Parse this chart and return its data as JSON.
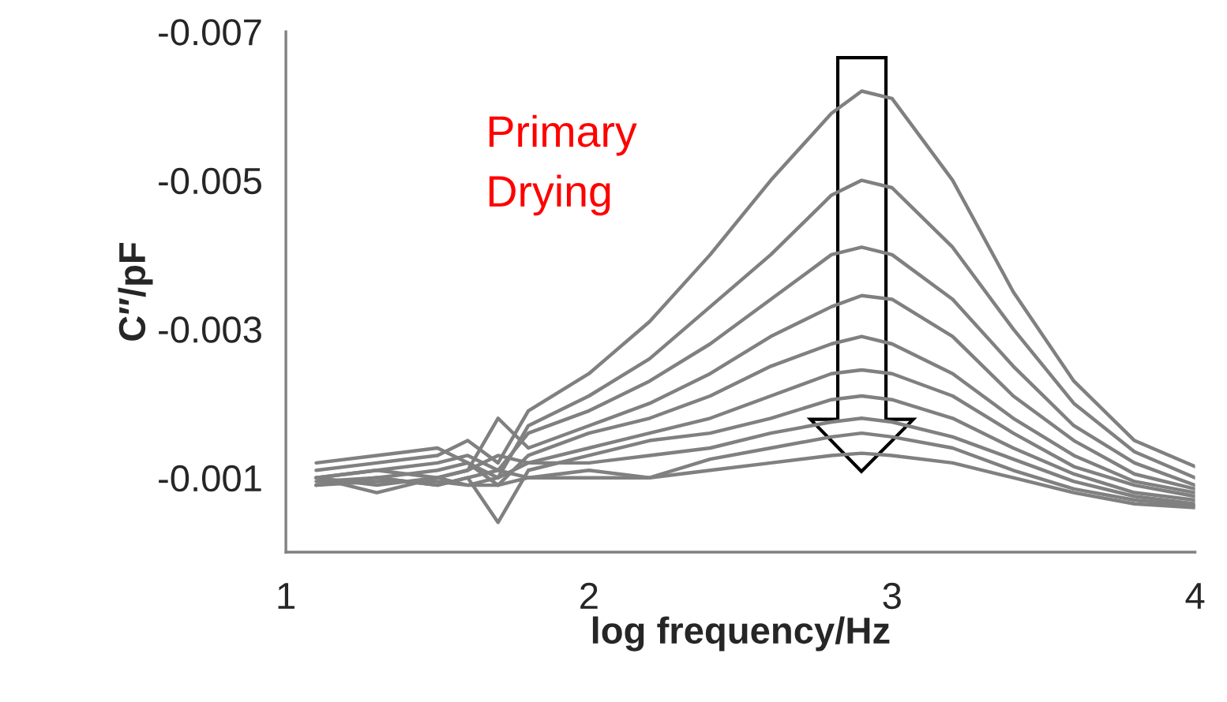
{
  "chart_data": {
    "type": "line",
    "xlabel": "log frequency/Hz",
    "ylabel": "C″/pF",
    "x": [
      1.1,
      1.3,
      1.5,
      1.6,
      1.7,
      1.8,
      2.0,
      2.2,
      2.4,
      2.6,
      2.8,
      2.9,
      3.0,
      3.2,
      3.4,
      3.6,
      3.8,
      4.0
    ],
    "series": [
      {
        "color": "#808080",
        "values": [
          -0.0011,
          -0.0012,
          -0.0013,
          -0.0015,
          -0.0012,
          -0.0019,
          -0.0024,
          -0.0031,
          -0.004,
          -0.005,
          -0.0059,
          -0.0062,
          -0.0061,
          -0.005,
          -0.0035,
          -0.0023,
          -0.0015,
          -0.00115
        ]
      },
      {
        "color": "#808080",
        "values": [
          -0.0012,
          -0.0013,
          -0.0014,
          -0.0012,
          -0.001,
          -0.0017,
          -0.0021,
          -0.0026,
          -0.0033,
          -0.004,
          -0.0048,
          -0.005,
          -0.0049,
          -0.0041,
          -0.003,
          -0.002,
          -0.00135,
          -0.001
        ]
      },
      {
        "color": "#808080",
        "values": [
          -0.001,
          -0.0011,
          -0.0012,
          -0.0013,
          -0.0011,
          -0.0016,
          -0.0019,
          -0.0023,
          -0.0028,
          -0.0034,
          -0.004,
          -0.0041,
          -0.004,
          -0.0034,
          -0.0025,
          -0.0017,
          -0.0012,
          -0.0009
        ]
      },
      {
        "color": "#808080",
        "values": [
          -0.001,
          -0.0011,
          -0.001,
          -0.0011,
          -0.0018,
          -0.0014,
          -0.0017,
          -0.002,
          -0.0024,
          -0.0029,
          -0.0033,
          -0.00345,
          -0.0034,
          -0.0029,
          -0.0021,
          -0.0015,
          -0.00105,
          -0.00085
        ]
      },
      {
        "color": "#808080",
        "values": [
          -0.0009,
          -0.001,
          -0.0011,
          -0.0012,
          -0.0009,
          -0.0013,
          -0.0016,
          -0.0018,
          -0.0021,
          -0.0025,
          -0.0028,
          -0.0029,
          -0.0028,
          -0.0024,
          -0.0018,
          -0.0013,
          -0.00095,
          -0.0008
        ]
      },
      {
        "color": "#808080",
        "values": [
          -0.001,
          -0.0009,
          -0.001,
          -0.0011,
          -0.0013,
          -0.0012,
          -0.0014,
          -0.0016,
          -0.0018,
          -0.0021,
          -0.0024,
          -0.00245,
          -0.0024,
          -0.0021,
          -0.0016,
          -0.00115,
          -0.0009,
          -0.00075
        ]
      },
      {
        "color": "#808080",
        "values": [
          -0.0009,
          -0.001,
          -0.0009,
          -0.001,
          -0.0004,
          -0.0011,
          -0.0013,
          -0.0015,
          -0.0016,
          -0.0018,
          -0.00205,
          -0.0021,
          -0.00205,
          -0.0018,
          -0.0014,
          -0.00105,
          -0.0008,
          -0.0007
        ]
      },
      {
        "color": "#808080",
        "values": [
          -0.001,
          -0.0008,
          -0.001,
          -0.0009,
          -0.001,
          -0.0012,
          -0.0012,
          -0.0013,
          -0.0014,
          -0.0016,
          -0.00175,
          -0.0018,
          -0.00175,
          -0.00155,
          -0.00125,
          -0.00095,
          -0.00075,
          -0.00065
        ]
      },
      {
        "color": "#808080",
        "values": [
          -0.00095,
          -0.001,
          -0.0009,
          -0.001,
          -0.0011,
          -0.001,
          -0.0011,
          -0.001,
          -0.00125,
          -0.0014,
          -0.00155,
          -0.0016,
          -0.00155,
          -0.0014,
          -0.0011,
          -0.00085,
          -0.0007,
          -0.00062
        ]
      },
      {
        "color": "#808080",
        "values": [
          -0.0009,
          -0.00095,
          -0.00095,
          -0.0009,
          -0.0009,
          -0.001,
          -0.001,
          -0.001,
          -0.0011,
          -0.0012,
          -0.0013,
          -0.00133,
          -0.0013,
          -0.0012,
          -0.001,
          -0.0008,
          -0.00065,
          -0.0006
        ]
      }
    ],
    "xlim": [
      1,
      4
    ],
    "xticks": [
      1,
      2,
      3,
      4
    ],
    "ylim": [
      0,
      -0.007
    ],
    "yticks": [
      {
        "value": -0.007,
        "label": "-0.007"
      },
      {
        "value": -0.005,
        "label": "-0.005"
      },
      {
        "value": -0.003,
        "label": "-0.003"
      },
      {
        "value": -0.001,
        "label": "-0.001"
      }
    ],
    "grid": false,
    "legend": false,
    "marker": "none",
    "line_style": "solid",
    "annotations": [
      "Primary\nDrying"
    ]
  }
}
